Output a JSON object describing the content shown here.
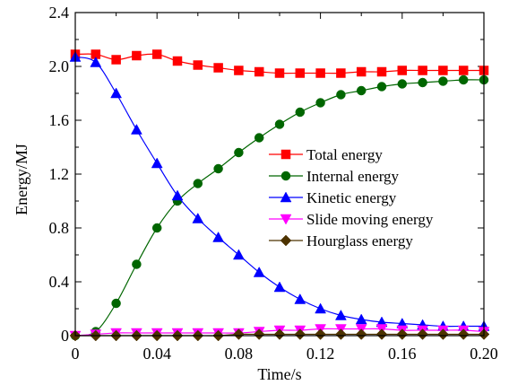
{
  "chart_data": {
    "type": "line",
    "title": "",
    "xlabel": "Time/s",
    "ylabel": "Energy/MJ",
    "xlim": [
      0,
      0.2
    ],
    "ylim": [
      0,
      2.4
    ],
    "xticks": [
      0,
      0.04,
      0.08,
      0.12,
      0.16,
      0.2
    ],
    "xtick_labels": [
      "0",
      "0.04",
      "0.08",
      "0.12",
      "0.16",
      "0.20"
    ],
    "yticks": [
      0,
      0.4,
      0.8,
      1.2,
      1.6,
      2.0,
      2.4
    ],
    "ytick_labels": [
      "0",
      "0.4",
      "0.8",
      "1.2",
      "1.6",
      "2.0",
      "2.4"
    ],
    "grid": false,
    "legend_position": "center-right",
    "series": [
      {
        "name": "Total energy",
        "color": "#ff0000",
        "marker": "square",
        "x": [
          0,
          0.01,
          0.02,
          0.03,
          0.04,
          0.05,
          0.06,
          0.07,
          0.08,
          0.09,
          0.1,
          0.11,
          0.12,
          0.13,
          0.14,
          0.15,
          0.16,
          0.17,
          0.18,
          0.19,
          0.2
        ],
        "y": [
          2.09,
          2.09,
          2.05,
          2.08,
          2.09,
          2.04,
          2.01,
          1.99,
          1.97,
          1.96,
          1.95,
          1.95,
          1.95,
          1.95,
          1.96,
          1.96,
          1.97,
          1.97,
          1.97,
          1.97,
          1.97
        ]
      },
      {
        "name": "Internal energy",
        "color": "#006600",
        "marker": "circle",
        "x": [
          0,
          0.01,
          0.02,
          0.03,
          0.04,
          0.05,
          0.06,
          0.07,
          0.08,
          0.09,
          0.1,
          0.11,
          0.12,
          0.13,
          0.14,
          0.15,
          0.16,
          0.17,
          0.18,
          0.19,
          0.2
        ],
        "y": [
          0,
          0.03,
          0.24,
          0.53,
          0.8,
          1.0,
          1.13,
          1.24,
          1.36,
          1.47,
          1.57,
          1.66,
          1.73,
          1.79,
          1.82,
          1.85,
          1.87,
          1.88,
          1.89,
          1.9,
          1.9
        ]
      },
      {
        "name": "Kinetic energy",
        "color": "#0000ff",
        "marker": "triangle",
        "x": [
          0,
          0.01,
          0.02,
          0.03,
          0.04,
          0.05,
          0.06,
          0.07,
          0.08,
          0.09,
          0.1,
          0.11,
          0.12,
          0.13,
          0.14,
          0.15,
          0.16,
          0.17,
          0.18,
          0.19,
          0.2
        ],
        "y": [
          2.07,
          2.03,
          1.8,
          1.53,
          1.28,
          1.04,
          0.87,
          0.73,
          0.6,
          0.47,
          0.36,
          0.27,
          0.2,
          0.15,
          0.12,
          0.1,
          0.09,
          0.08,
          0.07,
          0.07,
          0.07
        ]
      },
      {
        "name": "Slide moving energy",
        "color": "#ff00ff",
        "marker": "triangle-down",
        "x": [
          0,
          0.01,
          0.02,
          0.03,
          0.04,
          0.05,
          0.06,
          0.07,
          0.08,
          0.09,
          0.1,
          0.11,
          0.12,
          0.13,
          0.14,
          0.15,
          0.16,
          0.17,
          0.18,
          0.19,
          0.2
        ],
        "y": [
          0,
          0.01,
          0.02,
          0.02,
          0.02,
          0.02,
          0.02,
          0.02,
          0.02,
          0.03,
          0.04,
          0.04,
          0.05,
          0.05,
          0.05,
          0.05,
          0.04,
          0.04,
          0.04,
          0.04,
          0.03
        ]
      },
      {
        "name": "Hourglass energy",
        "color": "#4d3300",
        "marker": "diamond",
        "x": [
          0,
          0.01,
          0.02,
          0.03,
          0.04,
          0.05,
          0.06,
          0.07,
          0.08,
          0.09,
          0.1,
          0.11,
          0.12,
          0.13,
          0.14,
          0.15,
          0.16,
          0.17,
          0.18,
          0.19,
          0.2
        ],
        "y": [
          0,
          0,
          0,
          0,
          0,
          0,
          0,
          0,
          0.01,
          0.01,
          0.01,
          0.01,
          0.01,
          0.01,
          0.01,
          0.01,
          0.01,
          0.01,
          0.01,
          0.01,
          0.01
        ]
      }
    ]
  }
}
